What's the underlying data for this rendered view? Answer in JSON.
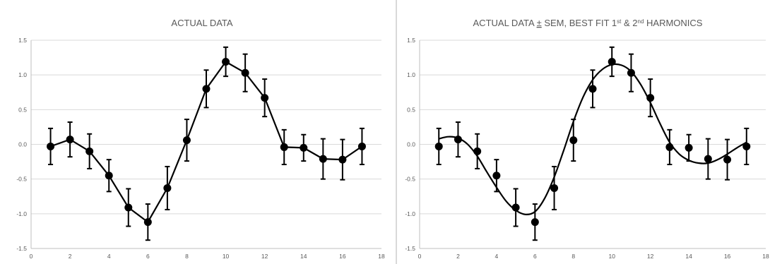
{
  "chart_data": [
    {
      "type": "line",
      "title": "ACTUAL DATA",
      "xlim": [
        0,
        18
      ],
      "ylim": [
        -1.5,
        1.5
      ],
      "x_ticks": [
        0,
        2,
        4,
        6,
        8,
        10,
        12,
        14,
        16,
        18
      ],
      "y_ticks": [
        1.5,
        1.0,
        0.5,
        0.0,
        -0.5,
        -1.0,
        -1.5
      ],
      "y_tick_labels": [
        "1.5",
        "1.0",
        "0.5",
        "0.0",
        "-0.5",
        "-1.0",
        "-1.5"
      ],
      "grid": true,
      "series": [
        {
          "x": [
            1,
            2,
            3,
            4,
            5,
            6,
            7,
            8,
            9,
            10,
            11,
            12,
            13,
            14,
            15,
            16,
            17
          ],
          "y": [
            -0.03,
            0.07,
            -0.1,
            -0.45,
            -0.91,
            -1.12,
            -0.63,
            0.06,
            0.8,
            1.19,
            1.03,
            0.67,
            -0.04,
            -0.05,
            -0.21,
            -0.22,
            -0.03
          ],
          "error": [
            0.26,
            0.25,
            0.25,
            0.23,
            0.27,
            0.26,
            0.31,
            0.3,
            0.27,
            0.21,
            0.27,
            0.27,
            0.25,
            0.19,
            0.29,
            0.29,
            0.26
          ],
          "color": "#000000",
          "connect": "data"
        }
      ]
    },
    {
      "type": "line",
      "title_parts": [
        "ACTUAL DATA ",
        "±",
        " SEM, BEST FIT 1",
        "st",
        " & 2",
        "nd",
        " HARMONICS"
      ],
      "xlim": [
        0,
        18
      ],
      "ylim": [
        -1.5,
        1.5
      ],
      "x_ticks": [
        0,
        2,
        4,
        6,
        8,
        10,
        12,
        14,
        16,
        18
      ],
      "y_ticks": [
        1.5,
        1.0,
        0.5,
        0.0,
        -0.5,
        -1.0,
        -1.5
      ],
      "y_tick_labels": [
        "1.5",
        "1.0",
        "0.5",
        "0.0",
        "-0.5",
        "-1.0",
        "-1.5"
      ],
      "grid": true,
      "series": [
        {
          "x": [
            1,
            2,
            3,
            4,
            5,
            6,
            7,
            8,
            9,
            10,
            11,
            12,
            13,
            14,
            15,
            16,
            17
          ],
          "y": [
            -0.03,
            0.07,
            -0.1,
            -0.45,
            -0.91,
            -1.12,
            -0.63,
            0.06,
            0.8,
            1.19,
            1.03,
            0.67,
            -0.04,
            -0.05,
            -0.21,
            -0.22,
            -0.03
          ],
          "error": [
            0.26,
            0.25,
            0.25,
            0.23,
            0.27,
            0.26,
            0.31,
            0.3,
            0.27,
            0.21,
            0.27,
            0.27,
            0.25,
            0.19,
            0.29,
            0.29,
            0.26
          ],
          "color": "#000000",
          "connect": "none"
        }
      ],
      "fit_curve": {
        "color": "#000000",
        "x": [
          1,
          1.5,
          2,
          2.5,
          3,
          3.5,
          4,
          4.5,
          5,
          5.5,
          6,
          6.5,
          7,
          7.5,
          8,
          8.5,
          9,
          9.5,
          10,
          10.5,
          11,
          11.5,
          12,
          12.5,
          13,
          13.5,
          14,
          14.5,
          15,
          15.5,
          16,
          16.5,
          17
        ],
        "y": [
          0.08,
          0.11,
          0.09,
          0.0,
          -0.17,
          -0.4,
          -0.62,
          -0.82,
          -0.95,
          -1.01,
          -0.97,
          -0.78,
          -0.47,
          -0.08,
          0.33,
          0.68,
          0.93,
          1.08,
          1.15,
          1.14,
          1.05,
          0.86,
          0.6,
          0.3,
          0.03,
          -0.14,
          -0.23,
          -0.27,
          -0.27,
          -0.22,
          -0.14,
          -0.05,
          0.03
        ]
      }
    }
  ]
}
